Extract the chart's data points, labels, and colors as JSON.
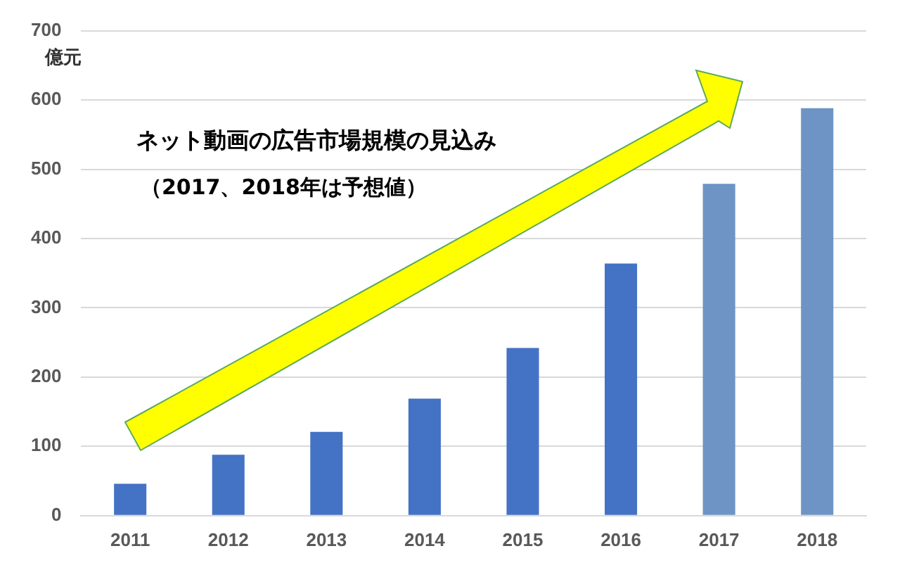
{
  "chart_data": {
    "type": "bar",
    "title": "ネット動画の広告市場規模の見込み",
    "subtitle": "（2017、2018年は予想値）",
    "ylabel": "億元",
    "categories": [
      "2011",
      "2012",
      "2013",
      "2014",
      "2015",
      "2016",
      "2017",
      "2018"
    ],
    "values": [
      46,
      88,
      121,
      169,
      242,
      364,
      479,
      588
    ],
    "colors": [
      "#4472c4",
      "#4472c4",
      "#4472c4",
      "#4472c4",
      "#4472c4",
      "#4472c4",
      "#6d94c4",
      "#6d94c4"
    ],
    "ylim": [
      0,
      700
    ],
    "yticks": [
      0,
      100,
      200,
      300,
      400,
      500,
      600,
      700
    ],
    "grid": "y"
  }
}
